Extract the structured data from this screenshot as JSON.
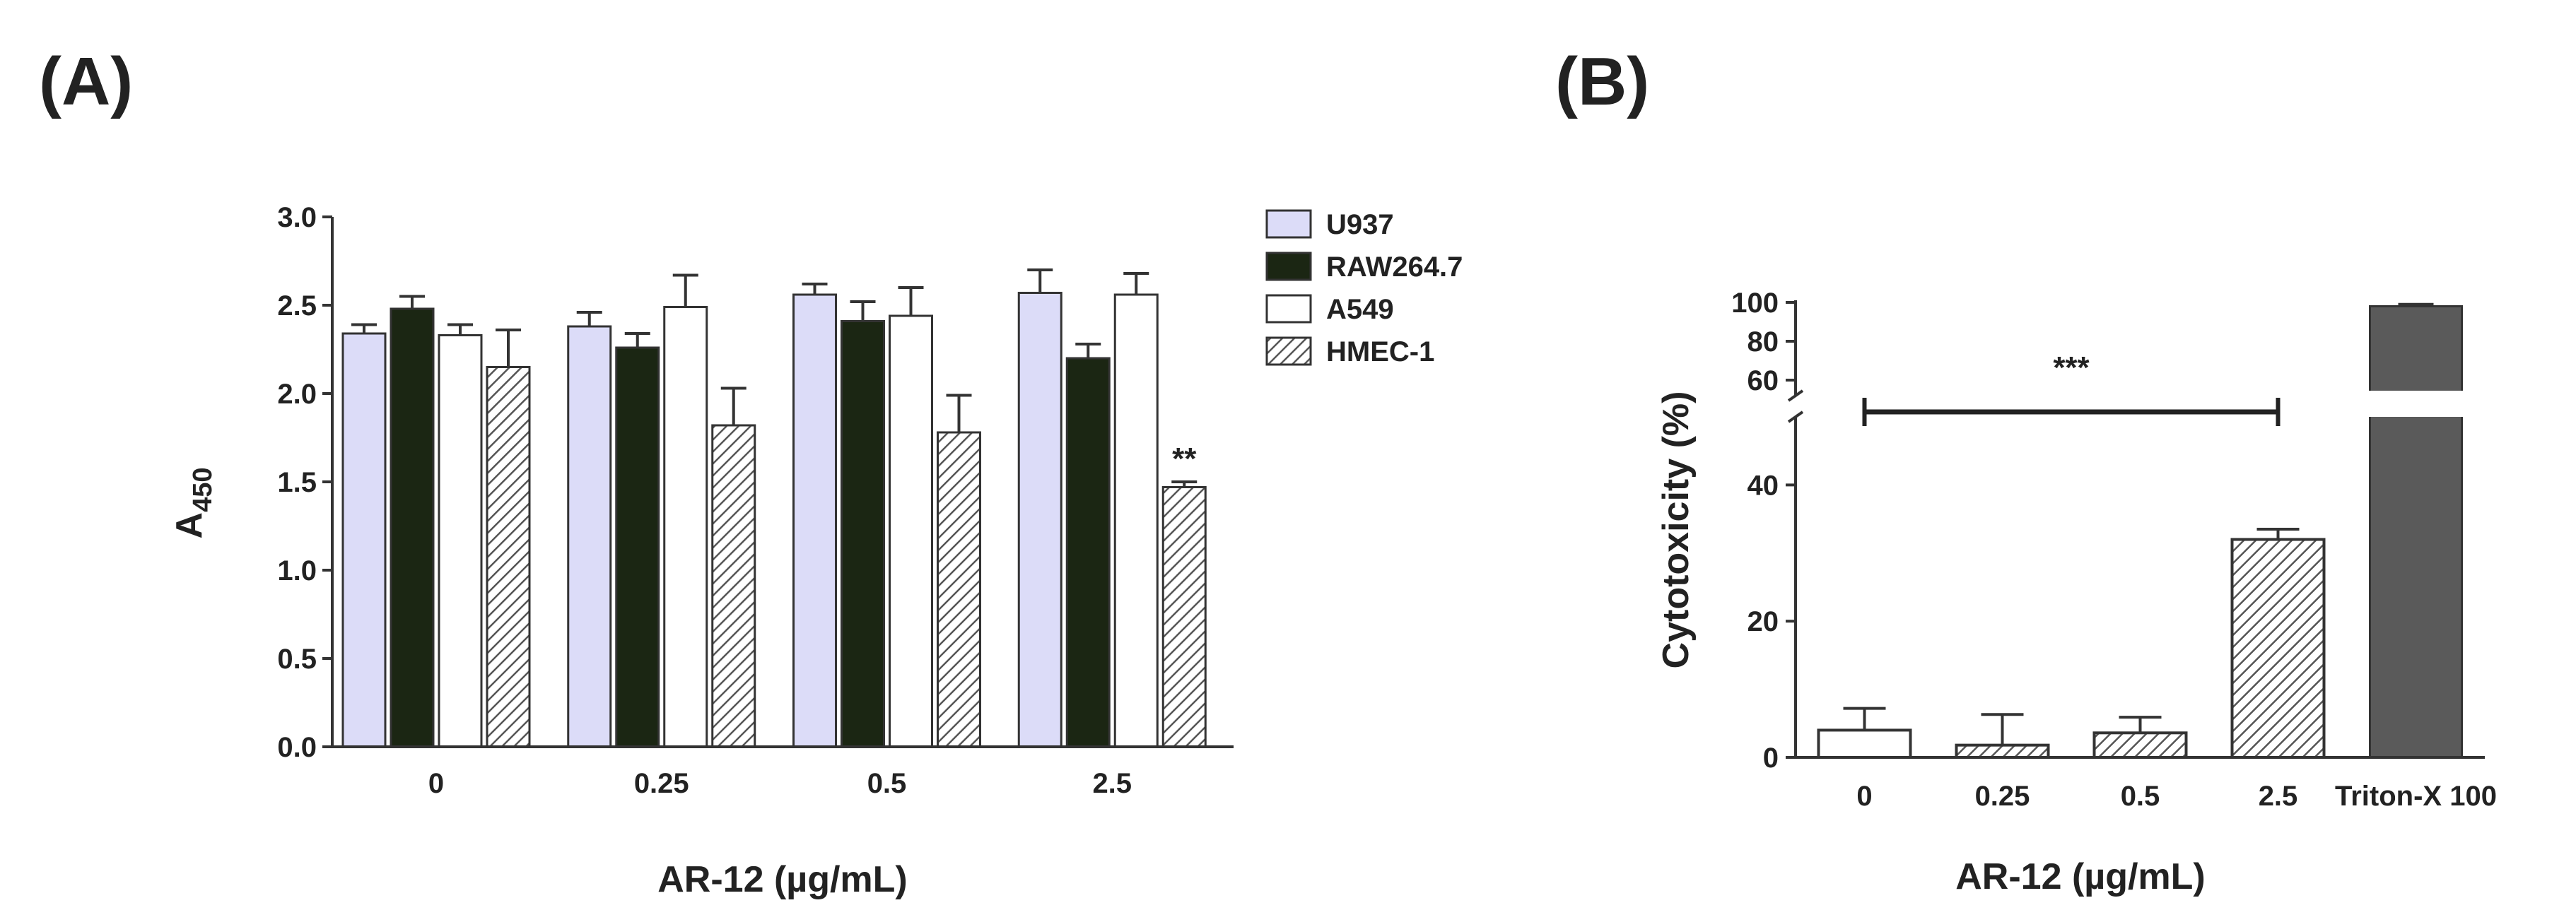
{
  "chart_data": [
    {
      "panel": "(A)",
      "type": "bar",
      "xlabel": "AR-12 (µg/mL)",
      "ylabel": "A",
      "ylabel_sub": "450",
      "ylim": [
        0,
        3.0
      ],
      "yticks": [
        0.0,
        0.5,
        1.0,
        1.5,
        2.0,
        2.5,
        3.0
      ],
      "yticklabels": [
        "0.0",
        "0.5",
        "1.0",
        "1.5",
        "2.0",
        "2.5",
        "3.0"
      ],
      "categories": [
        "0",
        "0.25",
        "0.5",
        "2.5"
      ],
      "legend_position": "right",
      "series": [
        {
          "name": "U937",
          "values": [
            2.34,
            2.38,
            2.56,
            2.57
          ],
          "errors": [
            0.05,
            0.08,
            0.06,
            0.13
          ],
          "fill": "#dcdcf8"
        },
        {
          "name": "RAW264.7",
          "values": [
            2.48,
            2.26,
            2.41,
            2.2
          ],
          "errors": [
            0.07,
            0.08,
            0.11,
            0.08
          ],
          "fill": "#1b2613"
        },
        {
          "name": "A549",
          "values": [
            2.33,
            2.49,
            2.44,
            2.56
          ],
          "errors": [
            0.06,
            0.18,
            0.16,
            0.12
          ],
          "fill": "#ffffff"
        },
        {
          "name": "HMEC-1",
          "values": [
            2.15,
            1.82,
            1.78,
            1.47
          ],
          "errors": [
            0.21,
            0.21,
            0.21,
            0.03
          ],
          "fill": "hatch"
        }
      ],
      "annotations": [
        {
          "text": "**",
          "category": "2.5",
          "series": "HMEC-1"
        }
      ]
    },
    {
      "panel": "(B)",
      "type": "bar",
      "xlabel": "AR-12 (µg/mL)",
      "ylabel": "Cytotoxicity (%)",
      "ylim": [
        0,
        100
      ],
      "axis_break": true,
      "lower_ticks": [
        "0",
        "20",
        "40"
      ],
      "upper_ticks": [
        "60",
        "80",
        "100"
      ],
      "categories": [
        "0",
        "0.25",
        "0.5",
        "2.5",
        "Triton-X 100"
      ],
      "values": [
        4.0,
        1.8,
        3.6,
        32.0,
        98.0
      ],
      "errors": [
        3.2,
        4.5,
        2.3,
        1.5,
        1.0
      ],
      "fills": [
        "#ffffff",
        "hatch",
        "hatch",
        "hatch",
        "#5a5a5a"
      ],
      "annotations": [
        {
          "text": "***",
          "from": "0",
          "to": "2.5"
        }
      ]
    }
  ]
}
